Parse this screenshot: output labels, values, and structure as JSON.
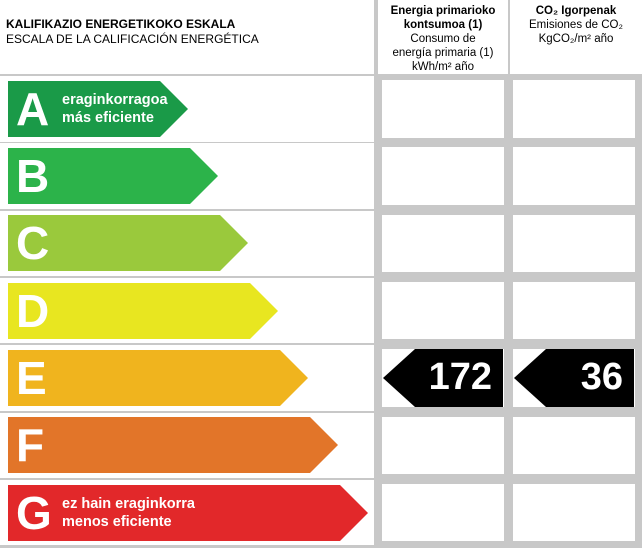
{
  "header": {
    "title_line1": "KALIFIKAZIO ENERGETIKOKO ESKALA",
    "title_line2": "ESCALA DE LA CALIFICACIÓN ENERGÉTICA"
  },
  "col_energy": {
    "line1": "Energia primarioko",
    "line2": "kontsumoa (1)",
    "line3": "Consumo de",
    "line4": "energía primaria (1)",
    "line5": "kWh/m² año"
  },
  "col_co2": {
    "line1": "CO₂ Igorpenak",
    "line2": "Emisiones de CO₂",
    "line3": "KgCO₂/m² año"
  },
  "rating": {
    "A": {
      "letter": "A",
      "color": "#1a9a48",
      "label1": "eraginkorragoa",
      "label2": "más eficiente"
    },
    "B": {
      "letter": "B",
      "color": "#2cb34a",
      "label1": "",
      "label2": ""
    },
    "C": {
      "letter": "C",
      "color": "#9ac93c",
      "label1": "",
      "label2": ""
    },
    "D": {
      "letter": "D",
      "color": "#e8e620",
      "label1": "",
      "label2": ""
    },
    "E": {
      "letter": "E",
      "color": "#f0b41e",
      "label1": "",
      "label2": ""
    },
    "F": {
      "letter": "F",
      "color": "#e27529",
      "label1": "",
      "label2": ""
    },
    "G": {
      "letter": "G",
      "color": "#e2282a",
      "label1": "ez hain eraginkorra",
      "label2": "menos eficiente"
    }
  },
  "result": {
    "class": "E",
    "energy_value": "172",
    "co2_value": "36"
  }
}
